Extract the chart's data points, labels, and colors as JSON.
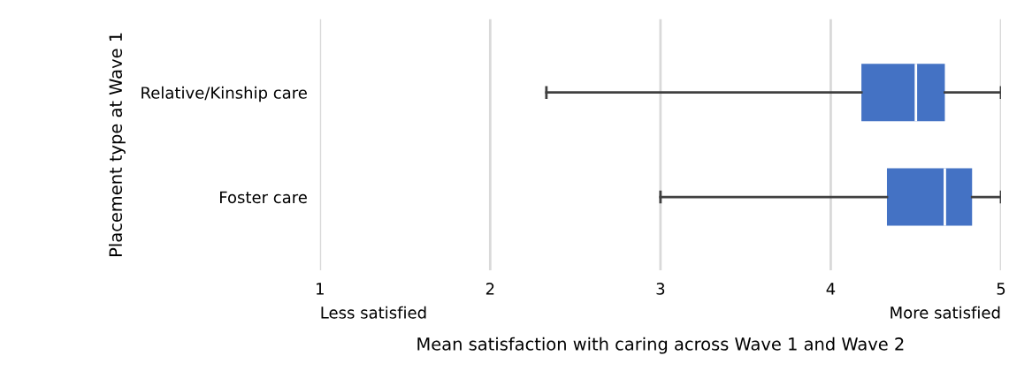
{
  "chart_data": {
    "type": "box",
    "orientation": "horizontal",
    "categories": [
      "Relative/Kinship care",
      "Foster care"
    ],
    "boxes": [
      {
        "low": 2.33,
        "q1": 4.18,
        "median": 4.5,
        "q3": 4.67,
        "high": 5
      },
      {
        "low": 3,
        "q1": 4.33,
        "median": 4.67,
        "q3": 4.83,
        "high": 5
      }
    ],
    "color": "#4472c4",
    "xlim": [
      1,
      5
    ],
    "xticks": [
      1,
      2,
      3,
      4,
      5
    ],
    "grid": "x",
    "xlabel": "Mean satisfaction with caring across Wave 1 and Wave 2",
    "ylabel": "Placement type at Wave 1",
    "annotations": [
      "Less satisfied",
      "More satisfied"
    ]
  }
}
